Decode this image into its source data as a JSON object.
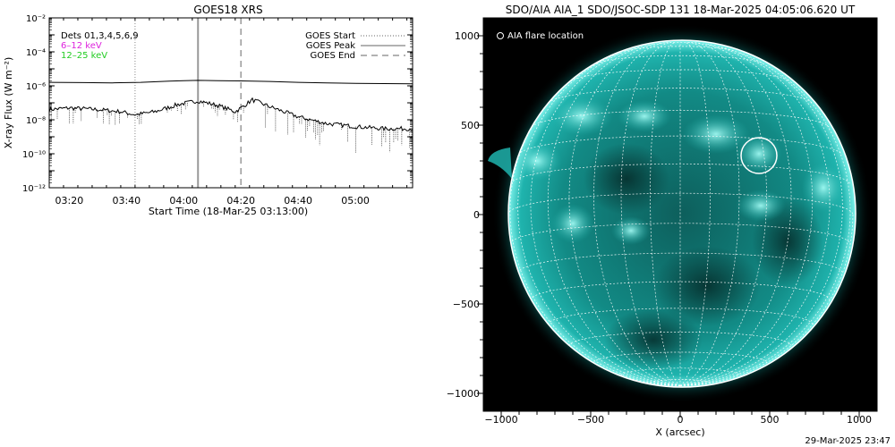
{
  "goes_panel": {
    "title": "GOES18 XRS",
    "ylabel": "X-ray Flux (W m⁻²)",
    "xlabel": "Start Time (18-Mar-25 03:13:00)",
    "detectors_label": "Dets 01,3,4,5,6,9",
    "band_low_label": "6–12 keV",
    "band_high_label": "12–25 keV",
    "legend": {
      "start": "GOES Start",
      "peak": "GOES Peak",
      "end": "GOES End"
    },
    "colors": {
      "band_low": "#dd22dd",
      "band_high": "#22cc22",
      "trace": "#000000"
    }
  },
  "aia_panel": {
    "title": "SDO/AIA AIA_1 SDO/JSOC-SDP 131 18-Mar-2025 04:05:06.620 UT",
    "legend_label": "AIA flare location",
    "xlabel": "X (arcsec)",
    "colors": {
      "sun": "#1fb3ad",
      "grid": "#ffffff",
      "background": "#000000"
    }
  },
  "footer": {
    "timestamp": "29-Mar-2025 23:47"
  },
  "chart_data": [
    {
      "type": "line",
      "title": "GOES18 XRS",
      "xlabel": "Start Time (18-Mar-25 03:13:00)",
      "ylabel": "X-ray Flux (W m⁻²)",
      "y_scale": "log",
      "ylim": [
        1e-12,
        0.01
      ],
      "xlim": [
        "03:13",
        "05:20"
      ],
      "x_ticks": [
        "03:20",
        "03:40",
        "04:00",
        "04:20",
        "04:40",
        "05:00"
      ],
      "y_ticks": [
        "10⁻¹²",
        "10⁻¹⁰",
        "10⁻⁸",
        "10⁻⁶",
        "10⁻⁴",
        "10⁻²"
      ],
      "markers": {
        "start": "03:43",
        "peak": "04:05",
        "end": "04:20"
      },
      "legend_position": "top-right",
      "series": [
        {
          "x": [
            "03:13",
            "03:25",
            "03:35",
            "03:45",
            "03:55",
            "04:00",
            "04:05",
            "04:12",
            "04:20",
            "04:30",
            "04:40",
            "04:50",
            "05:00",
            "05:10",
            "05:20"
          ],
          "values": [
            1.6e-06,
            1.55e-06,
            1.5e-06,
            1.6e-06,
            1.9e-06,
            2e-06,
            2.1e-06,
            2e-06,
            1.95e-06,
            1.8e-06,
            1.6e-06,
            1.5e-06,
            1.4e-06,
            1.35e-06,
            1.3e-06
          ]
        },
        {
          "x": [
            "03:13",
            "03:20",
            "03:30",
            "03:38",
            "03:43",
            "03:50",
            "03:58",
            "04:05",
            "04:12",
            "04:18",
            "04:20",
            "04:24",
            "04:30",
            "04:40",
            "04:50",
            "05:00",
            "05:10",
            "05:20"
          ],
          "values": [
            4e-08,
            5e-08,
            4e-08,
            3e-08,
            2e-08,
            3e-08,
            8e-08,
            1.3e-07,
            7e-08,
            3e-08,
            5e-08,
            1.5e-07,
            6e-08,
            1.5e-08,
            6e-09,
            4e-09,
            3e-09,
            3e-09
          ]
        }
      ]
    },
    {
      "type": "heatmap",
      "title": "SDO/AIA AIA_1 SDO/JSOC-SDP 131 18-Mar-2025 04:05:06.620 UT",
      "xlabel": "X (arcsec)",
      "ylabel": "",
      "xlim": [
        -1100,
        1100
      ],
      "ylim": [
        -1100,
        1100
      ],
      "x_ticks": [
        -1000,
        -500,
        0,
        500,
        1000
      ],
      "y_ticks": [
        -1000,
        -500,
        0,
        500,
        1000
      ],
      "solar_radius_arcsec": 965,
      "flare_location_arcsec": {
        "x": 440,
        "y": 330
      },
      "grid": true
    }
  ]
}
